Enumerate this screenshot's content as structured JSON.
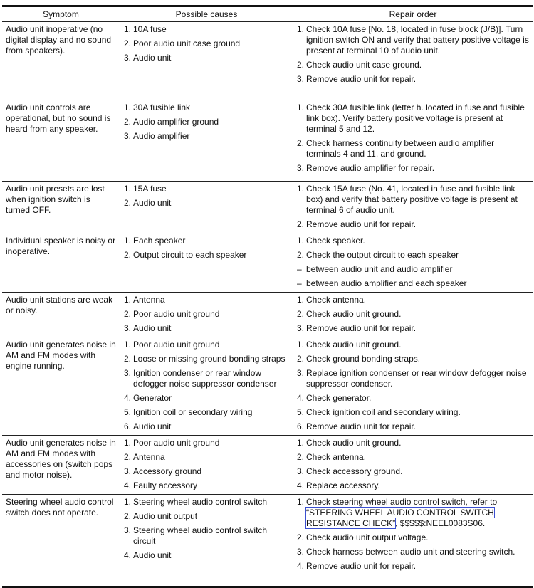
{
  "headers": [
    "Symptom",
    "Possible causes",
    "Repair order"
  ],
  "rows": [
    {
      "symptom": "Audio unit inoperative (no digital display and no sound from speakers).",
      "causes": [
        {
          "m": "1.",
          "t": "10A fuse"
        },
        {
          "m": "2.",
          "t": "Poor audio unit case ground"
        },
        {
          "m": "3.",
          "t": "Audio unit"
        }
      ],
      "repairs": [
        {
          "m": "1.",
          "t": "Check 10A fuse [No. 18, located in fuse block (J/B)]. Turn ignition switch ON and verify that battery positive voltage is present at terminal 10 of audio unit."
        },
        {
          "m": "2.",
          "t": "Check audio unit case ground."
        },
        {
          "m": "3.",
          "t": "Remove audio unit for repair."
        }
      ]
    },
    {
      "symptom": "Audio unit controls are operational, but no sound is heard from any speaker.",
      "causes": [
        {
          "m": "1.",
          "t": "30A fusible link"
        },
        {
          "m": "2.",
          "t": "Audio amplifier ground"
        },
        {
          "m": "3.",
          "t": "Audio amplifier"
        }
      ],
      "repairs": [
        {
          "m": "1.",
          "t": "Check 30A fusible link (letter h. located in fuse and fusible link box). Verify battery positive voltage is present at terminal 5 and 12."
        },
        {
          "m": "2.",
          "t": "Check harness continuity between audio amplifier terminals 4 and 11, and ground."
        },
        {
          "m": "3.",
          "t": "Remove audio amplifier for repair."
        }
      ]
    },
    {
      "symptom": "Audio unit presets are lost when ignition switch is turned OFF.",
      "causes": [
        {
          "m": "1.",
          "t": "15A fuse"
        },
        {
          "m": "2.",
          "t": "Audio unit"
        }
      ],
      "repairs": [
        {
          "m": "1.",
          "t": "Check 15A fuse (No. 41, located in fuse and fusible link box) and verify that battery positive voltage is present at terminal 6 of audio unit."
        },
        {
          "m": "2.",
          "t": "Remove audio unit for repair."
        }
      ]
    },
    {
      "symptom": "Individual speaker is noisy or inoperative.",
      "causes": [
        {
          "m": "1.",
          "t": "Each speaker"
        },
        {
          "m": "2.",
          "t": "Output circuit to each speaker"
        }
      ],
      "repairs": [
        {
          "m": "1.",
          "t": "Check speaker."
        },
        {
          "m": "2.",
          "t": "Check the output circuit to each speaker"
        },
        {
          "m": "–",
          "t": "between audio unit and audio amplifier"
        },
        {
          "m": "–",
          "t": "between audio amplifier and each speaker"
        }
      ]
    },
    {
      "symptom": "Audio unit stations are weak or noisy.",
      "causes": [
        {
          "m": "1.",
          "t": "Antenna"
        },
        {
          "m": "2.",
          "t": "Poor audio unit ground"
        },
        {
          "m": "3.",
          "t": "Audio unit"
        }
      ],
      "repairs": [
        {
          "m": "1.",
          "t": "Check antenna."
        },
        {
          "m": "2.",
          "t": "Check audio unit ground."
        },
        {
          "m": "3.",
          "t": "Remove audio unit for repair."
        }
      ]
    },
    {
      "symptom": "Audio unit generates noise in AM and FM modes with engine running.",
      "causes": [
        {
          "m": "1.",
          "t": "Poor audio unit ground"
        },
        {
          "m": "2.",
          "t": "Loose or missing ground bonding straps"
        },
        {
          "m": "3.",
          "t": "Ignition condenser or rear window defogger noise suppressor condenser"
        },
        {
          "m": "4.",
          "t": "Generator"
        },
        {
          "m": "5.",
          "t": "Ignition coil or secondary wiring"
        },
        {
          "m": "6.",
          "t": "Audio unit"
        }
      ],
      "repairs": [
        {
          "m": "1.",
          "t": "Check audio unit ground."
        },
        {
          "m": "2.",
          "t": "Check ground bonding straps."
        },
        {
          "m": "3.",
          "t": "Replace ignition condenser or rear window defogger noise suppressor condenser."
        },
        {
          "m": "4.",
          "t": "Check generator."
        },
        {
          "m": "5.",
          "t": "Check ignition coil and secondary wiring."
        },
        {
          "m": "6.",
          "t": "Remove audio unit for repair."
        }
      ]
    },
    {
      "symptom": "Audio unit generates noise in AM and FM modes with accessories on (switch pops and motor noise).",
      "causes": [
        {
          "m": "1.",
          "t": "Poor audio unit ground"
        },
        {
          "m": "2.",
          "t": "Antenna"
        },
        {
          "m": "3.",
          "t": "Accessory ground"
        },
        {
          "m": "4.",
          "t": "Faulty accessory"
        }
      ],
      "repairs": [
        {
          "m": "1.",
          "t": "Check audio unit ground."
        },
        {
          "m": "2.",
          "t": "Check antenna."
        },
        {
          "m": "3.",
          "t": "Check accessory ground."
        },
        {
          "m": "4.",
          "t": "Replace accessory."
        }
      ]
    },
    {
      "symptom": "Steering wheel audio control switch does not operate.",
      "causes": [
        {
          "m": "1.",
          "t": "Steering wheel audio control switch"
        },
        {
          "m": "2.",
          "t": "Audio unit output"
        },
        {
          "m": "3.",
          "t": "Steering wheel audio control switch circuit"
        },
        {
          "m": "4.",
          "t": "Audio unit"
        }
      ],
      "repairs": [
        {
          "m": "1.",
          "t": "Check steering wheel audio control switch, refer to ",
          "link": "“STEERING WHEEL AUDIO CONTROL SWITCH RESISTANCE CHECK”",
          "after": ", $$$$$:NEEL0083S06."
        },
        {
          "m": "2.",
          "t": "Check audio unit output voltage."
        },
        {
          "m": "3.",
          "t": "Check harness between audio unit and steering switch."
        },
        {
          "m": "4.",
          "t": "Remove audio unit for repair."
        }
      ]
    }
  ]
}
